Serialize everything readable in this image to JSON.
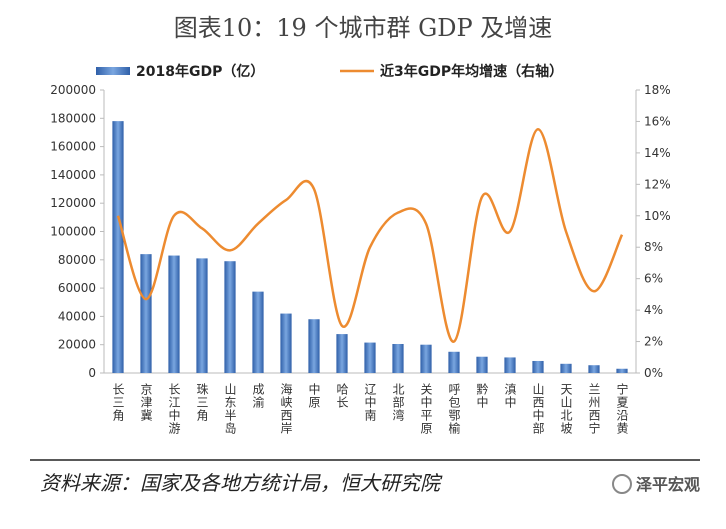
{
  "chart_data": {
    "type": "bar",
    "title": "图表10：19 个城市群 GDP 及增速",
    "categories": [
      "长三角",
      "京津冀",
      "长江中游",
      "珠三角",
      "山东半岛",
      "成渝",
      "海峡西岸",
      "中原",
      "哈长",
      "辽中南",
      "北部湾",
      "关中平原",
      "呼包鄂榆",
      "黔中",
      "滇中",
      "山西中部",
      "天山北坡",
      "兰州西宁",
      "宁夏沿黄"
    ],
    "series": [
      {
        "name": "2018年GDP（亿）",
        "type": "bar",
        "color": "#4a7fc8",
        "values": [
          178000,
          84000,
          83000,
          81000,
          79000,
          57500,
          42000,
          38000,
          27500,
          21500,
          20500,
          20000,
          15000,
          11500,
          11000,
          8500,
          6500,
          5500,
          3000
        ]
      },
      {
        "name": "近3年GDP年均增速（右轴）",
        "type": "line",
        "axis": "y2",
        "color": "#ed8b30",
        "values": [
          10,
          4.7,
          10,
          9.2,
          7.8,
          9.5,
          11,
          11.7,
          3,
          8,
          10.2,
          9.5,
          2,
          11.2,
          9,
          15.5,
          9,
          5.2,
          8.8
        ]
      }
    ],
    "ylim": [
      0,
      200000
    ],
    "yticks": [
      0,
      20000,
      40000,
      60000,
      80000,
      100000,
      120000,
      140000,
      160000,
      180000,
      200000
    ],
    "y2lim": [
      0,
      18
    ],
    "y2ticks": [
      {
        "value": 0,
        "label": "0%"
      },
      {
        "value": 2,
        "label": "2%"
      },
      {
        "value": 4,
        "label": "4%"
      },
      {
        "value": 6,
        "label": "6%"
      },
      {
        "value": 8,
        "label": "8%"
      },
      {
        "value": 10,
        "label": "10%"
      },
      {
        "value": 12,
        "label": "12%"
      },
      {
        "value": 14,
        "label": "14%"
      },
      {
        "value": 16,
        "label": "16%"
      },
      {
        "value": 18,
        "label": "18%"
      }
    ],
    "source": "资料来源：国家及各地方统计局，恒大研究院",
    "watermark": "泽平宏观"
  }
}
